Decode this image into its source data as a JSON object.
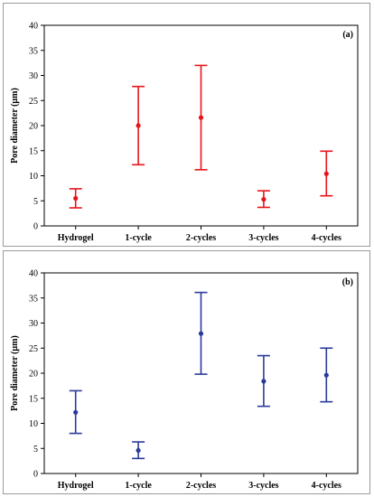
{
  "chart_data": [
    {
      "type": "scatter",
      "panel_label": "(a)",
      "ylabel": "Pore diameter (µm)",
      "xlabel": "",
      "ylim": [
        0,
        40
      ],
      "yticks": [
        "0",
        "5",
        "10",
        "15",
        "20",
        "25",
        "30",
        "35",
        "40"
      ],
      "categories": [
        "Hydrogel",
        "1-cycle",
        "2-cycles",
        "3-cycles",
        "4-cycles"
      ],
      "color": "#e8141c",
      "series": [
        {
          "values": [
            5.5,
            20.0,
            21.6,
            5.3,
            10.4
          ],
          "lower": [
            3.6,
            12.2,
            11.2,
            3.7,
            6.0
          ],
          "upper": [
            7.4,
            27.8,
            32.0,
            7.0,
            14.9
          ]
        }
      ],
      "grid": false
    },
    {
      "type": "scatter",
      "panel_label": "(b)",
      "ylabel": "Pore diameter (µm)",
      "xlabel": "",
      "ylim": [
        0,
        40
      ],
      "yticks": [
        "0",
        "5",
        "10",
        "15",
        "20",
        "25",
        "30",
        "35",
        "40"
      ],
      "categories": [
        "Hydrogel",
        "1-cycle",
        "2-cycles",
        "3-cycles",
        "4-cycles"
      ],
      "color": "#2b3a9a",
      "series": [
        {
          "values": [
            12.2,
            4.6,
            27.9,
            18.4,
            19.6
          ],
          "lower": [
            8.0,
            3.0,
            19.8,
            13.4,
            14.3
          ],
          "upper": [
            16.5,
            6.3,
            36.1,
            23.5,
            25.0
          ]
        }
      ],
      "grid": false
    }
  ]
}
